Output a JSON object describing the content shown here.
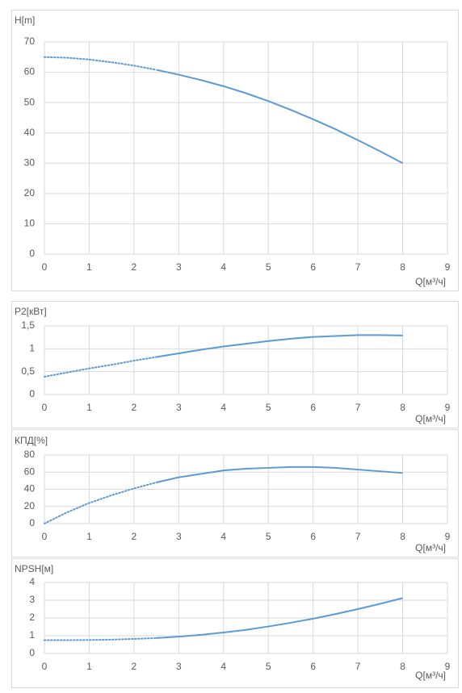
{
  "chart_data": [
    {
      "type": "line",
      "title": "H[m]",
      "x_label": "Q[м³/ч]",
      "grid": true,
      "xlim": [
        0,
        9
      ],
      "xticks": [
        0,
        1,
        2,
        3,
        4,
        5,
        6,
        7,
        8,
        9
      ],
      "ylim": [
        0,
        70
      ],
      "yticks": [
        0,
        10,
        20,
        30,
        40,
        50,
        60,
        70
      ],
      "series": [
        {
          "color": "#5b9bd5",
          "dash": "dotted",
          "x": [
            0,
            0.5,
            1,
            1.5,
            2,
            2.5
          ],
          "values": [
            65,
            64.8,
            64.2,
            63.3,
            62.2,
            60.8
          ]
        },
        {
          "color": "#5b9bd5",
          "dash": "solid",
          "x": [
            2.5,
            3,
            3.5,
            4,
            4.5,
            5,
            5.5,
            6,
            6.5,
            7,
            7.5,
            8
          ],
          "values": [
            60.8,
            59.2,
            57.4,
            55.4,
            53.1,
            50.5,
            47.6,
            44.5,
            41.2,
            37.6,
            33.9,
            30
          ]
        }
      ]
    },
    {
      "type": "line",
      "title": "P2[кВт]",
      "x_label": "Q[м³/ч]",
      "grid": true,
      "xlim": [
        0,
        9
      ],
      "xticks": [
        0,
        1,
        2,
        3,
        4,
        5,
        6,
        7,
        8,
        9
      ],
      "ylim": [
        0,
        1.5
      ],
      "yticks": [
        0,
        {
          "value": 0.5,
          "label": "0,5"
        },
        1,
        {
          "value": 1.5,
          "label": "1,5"
        }
      ],
      "series": [
        {
          "color": "#5b9bd5",
          "dash": "dotted",
          "x": [
            0,
            0.5,
            1,
            1.5,
            2,
            2.5
          ],
          "values": [
            0.39,
            0.48,
            0.57,
            0.65,
            0.74,
            0.82
          ]
        },
        {
          "color": "#5b9bd5",
          "dash": "solid",
          "x": [
            2.5,
            3,
            3.5,
            4,
            4.5,
            5,
            5.5,
            6,
            6.5,
            7,
            7.5,
            8
          ],
          "values": [
            0.82,
            0.9,
            0.98,
            1.05,
            1.11,
            1.17,
            1.22,
            1.26,
            1.28,
            1.3,
            1.3,
            1.29
          ]
        }
      ]
    },
    {
      "type": "line",
      "title": "КПД[%]",
      "x_label": "Q[м³/ч]",
      "grid": true,
      "xlim": [
        0,
        9
      ],
      "xticks": [
        0,
        1,
        2,
        3,
        4,
        5,
        6,
        7,
        8,
        9
      ],
      "ylim": [
        0,
        80
      ],
      "yticks": [
        0,
        20,
        40,
        60,
        80
      ],
      "series": [
        {
          "color": "#5b9bd5",
          "dash": "dotted",
          "x": [
            0,
            0.5,
            1,
            1.5,
            2,
            2.5
          ],
          "values": [
            0,
            13,
            24,
            33,
            41,
            48
          ]
        },
        {
          "color": "#5b9bd5",
          "dash": "solid",
          "x": [
            2.5,
            3,
            3.5,
            4,
            4.5,
            5,
            5.5,
            6,
            6.5,
            7,
            7.5,
            8
          ],
          "values": [
            48,
            54,
            58,
            62,
            64,
            65,
            66,
            66,
            65,
            63,
            61,
            59
          ]
        }
      ]
    },
    {
      "type": "line",
      "title": "NPSH[м]",
      "x_label": "Q[м³/ч]",
      "grid": true,
      "xlim": [
        0,
        9
      ],
      "xticks": [
        0,
        1,
        2,
        3,
        4,
        5,
        6,
        7,
        8,
        9
      ],
      "ylim": [
        0,
        4
      ],
      "yticks": [
        0,
        1,
        2,
        3,
        4
      ],
      "series": [
        {
          "color": "#5b9bd5",
          "dash": "dotted",
          "x": [
            0,
            0.5,
            1,
            1.5,
            2,
            2.5
          ],
          "values": [
            0.75,
            0.75,
            0.76,
            0.78,
            0.82,
            0.87
          ]
        },
        {
          "color": "#5b9bd5",
          "dash": "solid",
          "x": [
            2.5,
            3,
            3.5,
            4,
            4.5,
            5,
            5.5,
            6,
            6.5,
            7,
            7.5,
            8
          ],
          "values": [
            0.87,
            0.95,
            1.05,
            1.18,
            1.33,
            1.52,
            1.73,
            1.96,
            2.22,
            2.5,
            2.8,
            3.12
          ]
        }
      ]
    }
  ]
}
